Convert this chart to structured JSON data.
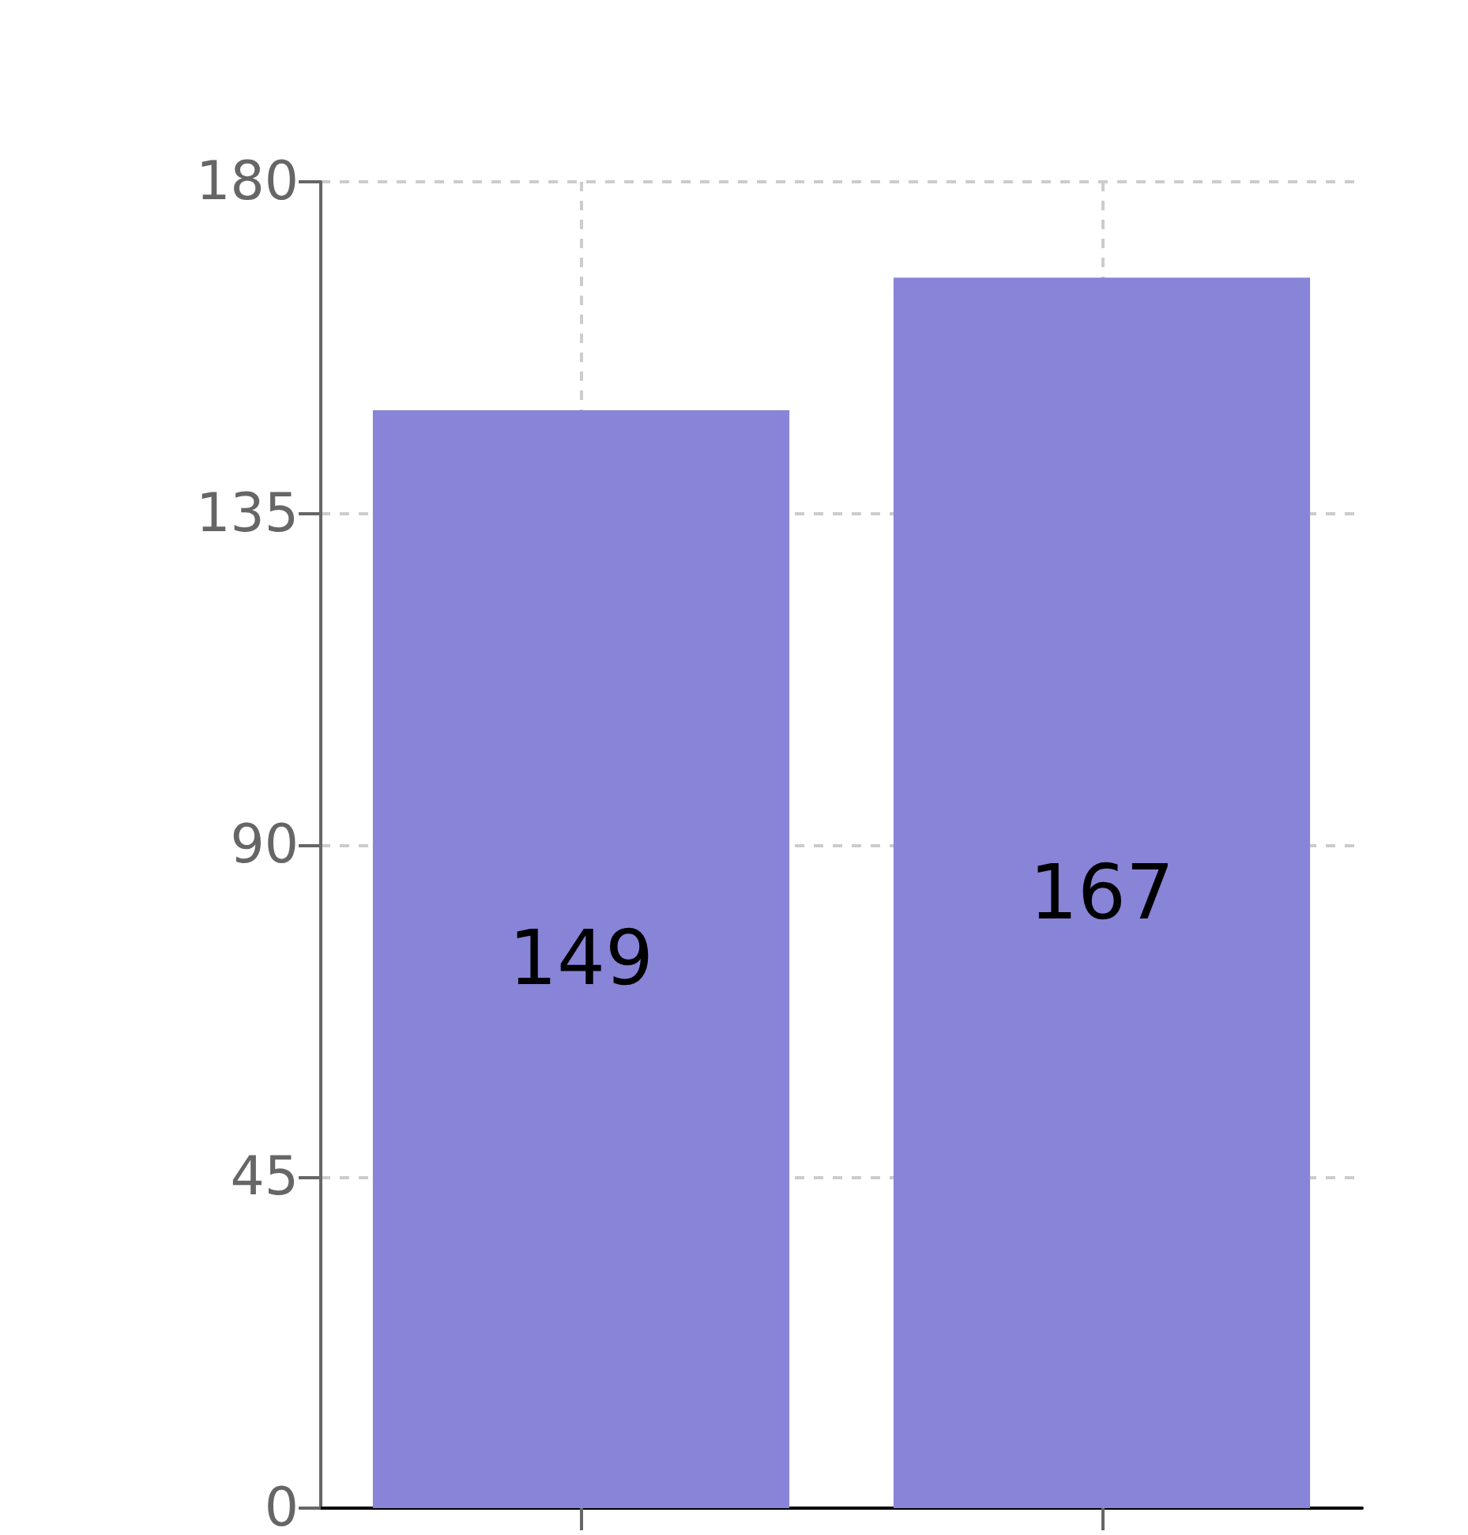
{
  "chart_data": {
    "type": "bar",
    "categories": [
      null,
      null
    ],
    "values": [
      149,
      167
    ],
    "color": "#8884d8",
    "ylim": [
      0,
      180
    ],
    "yticks": [
      0,
      45,
      90,
      135,
      180
    ],
    "grid": true,
    "data_labels": true
  }
}
